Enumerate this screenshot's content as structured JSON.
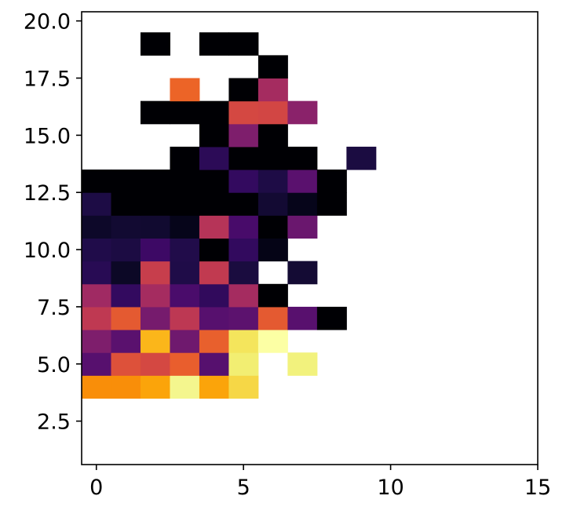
{
  "chart_data": {
    "type": "heatmap",
    "title": "",
    "xlabel": "",
    "ylabel": "",
    "xlim": [
      -0.5,
      15
    ],
    "ylim": [
      0.6,
      20.4
    ],
    "x_ticks": [
      {
        "value": 0,
        "label": "0"
      },
      {
        "value": 5,
        "label": "5"
      },
      {
        "value": 10,
        "label": "10"
      },
      {
        "value": 15,
        "label": "15"
      }
    ],
    "y_ticks": [
      {
        "value": 2.5,
        "label": "2.5"
      },
      {
        "value": 5.0,
        "label": "5.0"
      },
      {
        "value": 7.5,
        "label": "7.5"
      },
      {
        "value": 10.0,
        "label": "10.0"
      },
      {
        "value": 12.5,
        "label": "12.5"
      },
      {
        "value": 15.0,
        "label": "15.0"
      },
      {
        "value": 17.5,
        "label": "17.5"
      },
      {
        "value": 20.0,
        "label": "20.0"
      }
    ],
    "grid": false,
    "colormap": "inferno",
    "cell_size": {
      "x": 1,
      "y": 1
    },
    "cells": [
      {
        "x": 0,
        "y": 4,
        "color": "#f98e09"
      },
      {
        "x": 1,
        "y": 4,
        "color": "#f98e09"
      },
      {
        "x": 2,
        "y": 4,
        "color": "#fba40a"
      },
      {
        "x": 3,
        "y": 4,
        "color": "#f4f68e"
      },
      {
        "x": 4,
        "y": 4,
        "color": "#fba40a"
      },
      {
        "x": 5,
        "y": 4,
        "color": "#f6d746"
      },
      {
        "x": 0,
        "y": 5,
        "color": "#57106e"
      },
      {
        "x": 1,
        "y": 5,
        "color": "#dd513a"
      },
      {
        "x": 2,
        "y": 5,
        "color": "#d44842"
      },
      {
        "x": 3,
        "y": 5,
        "color": "#e95e2d"
      },
      {
        "x": 4,
        "y": 5,
        "color": "#56106e"
      },
      {
        "x": 5,
        "y": 5,
        "color": "#f2ee72"
      },
      {
        "x": 7,
        "y": 5,
        "color": "#f2f27d"
      },
      {
        "x": 0,
        "y": 6,
        "color": "#7e1e6c"
      },
      {
        "x": 1,
        "y": 6,
        "color": "#5a116e"
      },
      {
        "x": 2,
        "y": 6,
        "color": "#fbb61a"
      },
      {
        "x": 3,
        "y": 6,
        "color": "#6f196e"
      },
      {
        "x": 4,
        "y": 6,
        "color": "#e8602d"
      },
      {
        "x": 5,
        "y": 6,
        "color": "#f4e55c"
      },
      {
        "x": 6,
        "y": 6,
        "color": "#fcffa4"
      },
      {
        "x": 0,
        "y": 7,
        "color": "#bf3952"
      },
      {
        "x": 1,
        "y": 7,
        "color": "#e45a31"
      },
      {
        "x": 2,
        "y": 7,
        "color": "#761b6d"
      },
      {
        "x": 3,
        "y": 7,
        "color": "#bd3853"
      },
      {
        "x": 4,
        "y": 7,
        "color": "#57106e"
      },
      {
        "x": 5,
        "y": 7,
        "color": "#5c126e"
      },
      {
        "x": 6,
        "y": 7,
        "color": "#e45a31"
      },
      {
        "x": 7,
        "y": 7,
        "color": "#58106e"
      },
      {
        "x": 8,
        "y": 7,
        "color": "#000004"
      },
      {
        "x": 0,
        "y": 8,
        "color": "#a02a63"
      },
      {
        "x": 1,
        "y": 8,
        "color": "#330a5f"
      },
      {
        "x": 2,
        "y": 8,
        "color": "#a52c60"
      },
      {
        "x": 3,
        "y": 8,
        "color": "#4a0c6b"
      },
      {
        "x": 4,
        "y": 8,
        "color": "#310a5c"
      },
      {
        "x": 5,
        "y": 8,
        "color": "#a52c60"
      },
      {
        "x": 6,
        "y": 8,
        "color": "#000004"
      },
      {
        "x": 0,
        "y": 9,
        "color": "#280b54"
      },
      {
        "x": 1,
        "y": 9,
        "color": "#0c0826"
      },
      {
        "x": 2,
        "y": 9,
        "color": "#c73e4c"
      },
      {
        "x": 3,
        "y": 9,
        "color": "#1f0c48"
      },
      {
        "x": 4,
        "y": 9,
        "color": "#c13a50"
      },
      {
        "x": 5,
        "y": 9,
        "color": "#1a0c3f"
      },
      {
        "x": 7,
        "y": 9,
        "color": "#140b34"
      },
      {
        "x": 0,
        "y": 10,
        "color": "#200c4a"
      },
      {
        "x": 1,
        "y": 10,
        "color": "#1c0c43"
      },
      {
        "x": 2,
        "y": 10,
        "color": "#3d0965"
      },
      {
        "x": 3,
        "y": 10,
        "color": "#210c4a"
      },
      {
        "x": 4,
        "y": 10,
        "color": "#000004"
      },
      {
        "x": 5,
        "y": 10,
        "color": "#320a5e"
      },
      {
        "x": 6,
        "y": 10,
        "color": "#050416"
      },
      {
        "x": 0,
        "y": 11,
        "color": "#0d0829"
      },
      {
        "x": 1,
        "y": 11,
        "color": "#120a32"
      },
      {
        "x": 2,
        "y": 11,
        "color": "#110a30"
      },
      {
        "x": 3,
        "y": 11,
        "color": "#06051a"
      },
      {
        "x": 4,
        "y": 11,
        "color": "#b63458"
      },
      {
        "x": 5,
        "y": 11,
        "color": "#480b6a"
      },
      {
        "x": 6,
        "y": 11,
        "color": "#000004"
      },
      {
        "x": 7,
        "y": 11,
        "color": "#6a176e"
      },
      {
        "x": 0,
        "y": 12,
        "color": "#1d0c45"
      },
      {
        "x": 1,
        "y": 12,
        "color": "#000004"
      },
      {
        "x": 2,
        "y": 12,
        "color": "#000004"
      },
      {
        "x": 3,
        "y": 12,
        "color": "#000004"
      },
      {
        "x": 4,
        "y": 12,
        "color": "#000004"
      },
      {
        "x": 5,
        "y": 12,
        "color": "#000004"
      },
      {
        "x": 6,
        "y": 12,
        "color": "#130a33"
      },
      {
        "x": 7,
        "y": 12,
        "color": "#06051a"
      },
      {
        "x": 8,
        "y": 12,
        "color": "#000004"
      },
      {
        "x": 0,
        "y": 13,
        "color": "#000004"
      },
      {
        "x": 1,
        "y": 13,
        "color": "#000004"
      },
      {
        "x": 2,
        "y": 13,
        "color": "#000004"
      },
      {
        "x": 3,
        "y": 13,
        "color": "#000004"
      },
      {
        "x": 4,
        "y": 13,
        "color": "#000004"
      },
      {
        "x": 5,
        "y": 13,
        "color": "#330a5f"
      },
      {
        "x": 6,
        "y": 13,
        "color": "#1e0c46"
      },
      {
        "x": 7,
        "y": 13,
        "color": "#5a116e"
      },
      {
        "x": 8,
        "y": 13,
        "color": "#000004"
      },
      {
        "x": 3,
        "y": 14,
        "color": "#000004"
      },
      {
        "x": 4,
        "y": 14,
        "color": "#2c0b57"
      },
      {
        "x": 5,
        "y": 14,
        "color": "#000004"
      },
      {
        "x": 6,
        "y": 14,
        "color": "#000004"
      },
      {
        "x": 7,
        "y": 14,
        "color": "#000004"
      },
      {
        "x": 9,
        "y": 14,
        "color": "#1b0c41"
      },
      {
        "x": 4,
        "y": 15,
        "color": "#000004"
      },
      {
        "x": 5,
        "y": 15,
        "color": "#7e1e6c"
      },
      {
        "x": 6,
        "y": 15,
        "color": "#000004"
      },
      {
        "x": 2,
        "y": 16,
        "color": "#000004"
      },
      {
        "x": 3,
        "y": 16,
        "color": "#000004"
      },
      {
        "x": 4,
        "y": 16,
        "color": "#000004"
      },
      {
        "x": 5,
        "y": 16,
        "color": "#d44842"
      },
      {
        "x": 6,
        "y": 16,
        "color": "#d24644"
      },
      {
        "x": 7,
        "y": 16,
        "color": "#8a226a"
      },
      {
        "x": 3,
        "y": 17,
        "color": "#ec6427"
      },
      {
        "x": 5,
        "y": 17,
        "color": "#000004"
      },
      {
        "x": 6,
        "y": 17,
        "color": "#a52c60"
      },
      {
        "x": 6,
        "y": 18,
        "color": "#000004"
      },
      {
        "x": 2,
        "y": 19,
        "color": "#000004"
      },
      {
        "x": 4,
        "y": 19,
        "color": "#000004"
      },
      {
        "x": 5,
        "y": 19,
        "color": "#000004"
      }
    ]
  }
}
